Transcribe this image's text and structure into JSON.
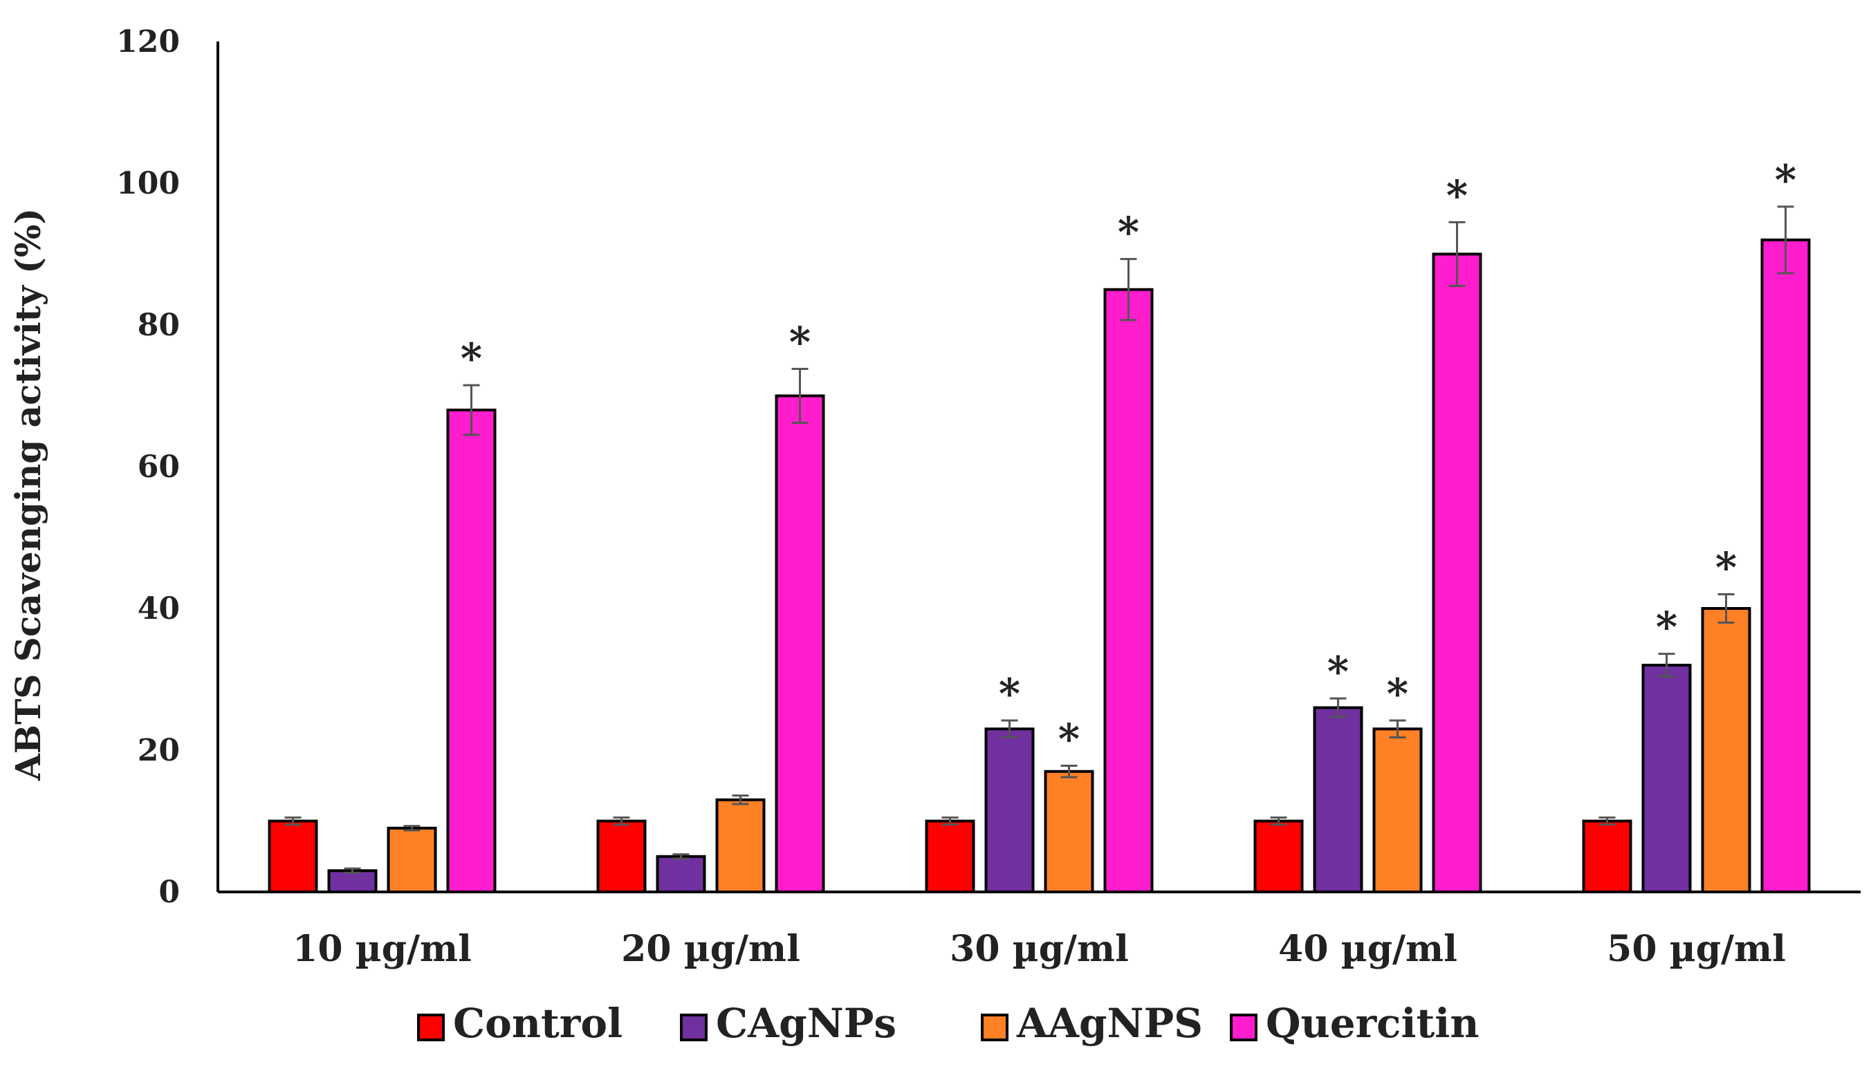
{
  "chart_data": {
    "type": "bar",
    "title": "",
    "xlabel": "",
    "ylabel": "ABTS Scavenging activity (%)",
    "ylim": [
      0,
      120
    ],
    "yticks": [
      0,
      20,
      40,
      60,
      80,
      100,
      120
    ],
    "grid": false,
    "legend_position": "bottom",
    "categories": [
      "10 µg/ml",
      "20 µg/ml",
      "30 µg/ml",
      "40 µg/ml",
      "50 µg/ml"
    ],
    "series": [
      {
        "name": "Control",
        "color": "#ff0000",
        "values": [
          10,
          10,
          10,
          10,
          10
        ],
        "errors": [
          0.5,
          0.5,
          0.5,
          0.5,
          0.5
        ],
        "significant": [
          false,
          false,
          false,
          false,
          false
        ]
      },
      {
        "name": "CAgNPs",
        "color": "#7030a0",
        "values": [
          3,
          5,
          23,
          26,
          32
        ],
        "errors": [
          0.3,
          0.3,
          1.2,
          1.3,
          1.6
        ],
        "significant": [
          false,
          false,
          true,
          true,
          true
        ]
      },
      {
        "name": "AAgNPS",
        "color": "#ff8025",
        "values": [
          9,
          13,
          17,
          23,
          40
        ],
        "errors": [
          0.3,
          0.6,
          0.8,
          1.2,
          2.0
        ],
        "significant": [
          false,
          false,
          true,
          true,
          true
        ]
      },
      {
        "name": "Quercitin",
        "color": "#ff1dce",
        "values": [
          68,
          70,
          85,
          90,
          92
        ],
        "errors": [
          3.5,
          3.8,
          4.3,
          4.5,
          4.7
        ],
        "significant": [
          true,
          true,
          true,
          true,
          true
        ]
      }
    ],
    "significance_marker": "*"
  }
}
